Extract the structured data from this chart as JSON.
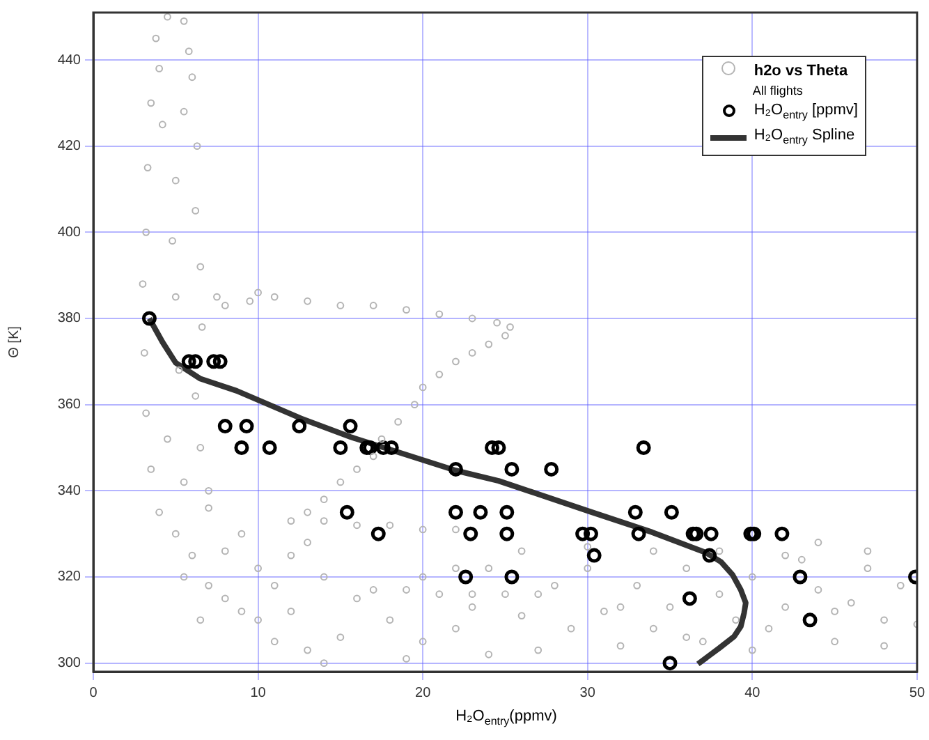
{
  "chart_data": {
    "type": "scatter",
    "xlabel": "H₂O$_{entry}$(ppmv)",
    "ylabel": "Θ [K]",
    "xlim": [
      0,
      50
    ],
    "ylim": [
      298,
      451
    ],
    "xticks": [
      0,
      10,
      20,
      30,
      40,
      50
    ],
    "yticks": [
      300,
      320,
      340,
      360,
      380,
      400,
      420,
      440
    ],
    "grid": true,
    "legend": "top right",
    "annotations": [
      "All flights"
    ],
    "series": [
      {
        "name": "h2o vs Theta",
        "marker": "circle",
        "color": "#b4b4b4",
        "x": [
          4.5,
          5.5,
          3.8,
          5.8,
          4,
          6,
          3.5,
          5.5,
          4.2,
          6.3,
          3.3,
          5,
          6.2,
          3.2,
          4.8,
          6.5,
          3,
          5,
          6.6,
          3.1,
          5.2,
          6.2,
          3.2,
          4.5,
          6.5,
          3.5,
          5.5,
          7,
          7.5,
          8,
          9.5,
          10,
          11,
          13,
          15,
          17,
          19,
          21,
          23,
          24.5,
          25.3,
          25,
          24,
          23,
          22,
          21,
          20,
          19.5,
          18.5,
          17.5,
          17,
          16,
          15,
          14,
          13,
          4,
          5,
          6,
          5.5,
          7,
          8,
          9,
          10,
          12,
          8,
          10,
          11,
          9,
          7,
          6.5,
          11,
          13,
          14,
          15,
          12,
          14,
          16,
          18,
          13,
          12,
          14,
          16,
          18,
          20,
          22,
          17,
          19,
          21,
          23,
          25,
          27,
          20,
          22,
          24,
          26,
          28,
          30,
          29,
          31,
          32,
          33,
          34,
          35,
          36,
          37,
          38,
          39,
          40,
          41,
          42,
          43,
          44,
          45,
          46,
          47,
          48,
          49,
          50,
          47,
          44,
          42,
          38,
          34,
          30,
          26,
          24,
          20,
          22,
          32,
          36,
          40,
          27,
          19,
          23,
          45,
          48
        ],
        "values": [
          450,
          449,
          445,
          442,
          438,
          436,
          430,
          428,
          425,
          420,
          415,
          412,
          405,
          400,
          398,
          392,
          388,
          385,
          378,
          372,
          368,
          362,
          358,
          352,
          350,
          345,
          342,
          340,
          385,
          383,
          384,
          386,
          385,
          384,
          383,
          383,
          382,
          381,
          380,
          379,
          378,
          376,
          374,
          372,
          370,
          367,
          364,
          360,
          356,
          352,
          348,
          345,
          342,
          338,
          335,
          335,
          330,
          325,
          320,
          318,
          315,
          312,
          310,
          312,
          326,
          322,
          318,
          330,
          336,
          310,
          305,
          303,
          300,
          306,
          325,
          320,
          315,
          310,
          328,
          333,
          333,
          332,
          332,
          331,
          331,
          317,
          317,
          316,
          316,
          316,
          316,
          305,
          308,
          302,
          311,
          318,
          322,
          308,
          312,
          304,
          318,
          308,
          313,
          322,
          305,
          316,
          310,
          320,
          308,
          313,
          324,
          317,
          305,
          314,
          322,
          310,
          318,
          309,
          326,
          328,
          325,
          326,
          326,
          327,
          326,
          322,
          320,
          322,
          313,
          306,
          303,
          303,
          301,
          313,
          312,
          304
        ]
      },
      {
        "name": "H₂O$_{entry}$ [ppmv]",
        "marker": "circle",
        "color": "#000000",
        "x": [
          3.4,
          5.8,
          6.2,
          7.3,
          7.7,
          8,
          9.3,
          12.5,
          15.6,
          9,
          10.7,
          15,
          16.6,
          16.8,
          17.6,
          18.1,
          24.2,
          24.6,
          33.4,
          22,
          25.4,
          27.8,
          15.4,
          22,
          23.5,
          25.1,
          32.9,
          35.1,
          17.3,
          22.9,
          25.1,
          29.7,
          30.2,
          33.1,
          36.4,
          36.6,
          37.5,
          39.9,
          40.1,
          41.8,
          30.4,
          37.4,
          22.6,
          25.4,
          42.9,
          49.9,
          36.2,
          43.5,
          35
        ],
        "values": [
          380,
          370,
          370,
          370,
          370,
          355,
          355,
          355,
          355,
          350,
          350,
          350,
          350,
          350,
          350,
          350,
          350,
          350,
          350,
          345,
          345,
          345,
          335,
          335,
          335,
          335,
          335,
          335,
          330,
          330,
          330,
          330,
          330,
          330,
          330,
          330,
          330,
          330,
          330,
          330,
          325,
          325,
          320,
          320,
          320,
          320,
          315,
          310,
          300
        ]
      },
      {
        "name": "H₂O$_{entry}$ Spline",
        "type": "line",
        "marker": "none",
        "color": "#333333",
        "x": [
          3.4,
          4.2,
          5,
          6.5,
          8.7,
          12.6,
          15.6,
          22,
          24.6,
          30.2,
          33.9,
          37.2,
          38.1,
          38.8,
          39.3,
          39.6,
          39.5,
          39.3,
          38.9,
          38,
          36.7
        ],
        "values": [
          380,
          374.5,
          369.7,
          366,
          363.2,
          356.8,
          352.5,
          344.7,
          342.3,
          335.1,
          330.4,
          325.6,
          323.5,
          320.5,
          317,
          314,
          311.6,
          308.5,
          306.2,
          303.5,
          299.8
        ]
      }
    ]
  }
}
